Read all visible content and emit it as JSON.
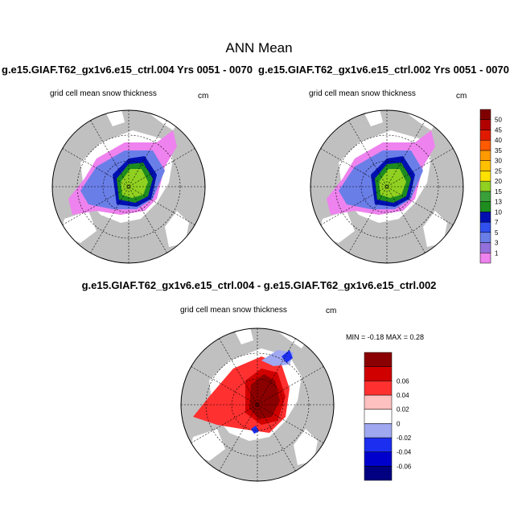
{
  "figure": {
    "title": "ANN Mean",
    "run_a_title": "g.e15.GIAF.T62_gx1v6.e15_ctrl.004  Yrs 0051 - 0070",
    "run_b_title": "g.e15.GIAF.T62_gx1v6.e15_ctrl.002  Yrs 0051 - 0070",
    "difference_title": "g.e15.GIAF.T62_gx1v6.e15_ctrl.004 - g.e15.GIAF.T62_gx1v6.e15_ctrl.002"
  },
  "panels": {
    "a": {
      "label": "grid cell mean snow thickness",
      "units": "cm"
    },
    "b": {
      "label": "grid cell mean snow thickness",
      "units": "cm"
    },
    "c": {
      "label": "grid cell mean snow thickness",
      "units": "cm",
      "min_max_text": "MIN =  -0.18 MAX =   0.28"
    }
  },
  "chart_data": [
    {
      "type": "heatmap",
      "title": "g.e15.GIAF.T62_gx1v6.e15_ctrl.004  Yrs 0051 - 0070",
      "variable": "grid cell mean snow thickness",
      "units": "cm",
      "projection": "north polar stereographic",
      "colorbar": {
        "levels": [
          "1",
          "3",
          "5",
          "7",
          "10",
          "13",
          "15",
          "20",
          "25",
          "30",
          "35",
          "40",
          "45",
          "50"
        ],
        "colors": [
          "#ee82ee",
          "#9370db",
          "#6a7ee8",
          "#3050f0",
          "#0010b0",
          "#1e8c1e",
          "#3aa03a",
          "#90d020",
          "#ffe100",
          "#ffc000",
          "#ff9a00",
          "#ff5a00",
          "#e01a00",
          "#b00000",
          "#800000"
        ]
      },
      "field_colors": {
        "land": "#c0c0c0",
        "ocean": "#ffffff"
      }
    },
    {
      "type": "heatmap",
      "title": "g.e15.GIAF.T62_gx1v6.e15_ctrl.002  Yrs 0051 - 0070",
      "variable": "grid cell mean snow thickness",
      "units": "cm",
      "projection": "north polar stereographic"
    },
    {
      "type": "heatmap",
      "title": "g.e15.GIAF.T62_gx1v6.e15_ctrl.004 - g.e15.GIAF.T62_gx1v6.e15_ctrl.002",
      "variable": "grid cell mean snow thickness",
      "units": "cm",
      "projection": "north polar stereographic",
      "min": -0.18,
      "max": 0.28,
      "colorbar": {
        "levels": [
          "-0.06",
          "-0.04",
          "-0.02",
          "0",
          "0.02",
          "0.04",
          "0.06"
        ],
        "colors": [
          "#000080",
          "#0000cd",
          "#1c2ff0",
          "#a0a8f0",
          "#ffffff",
          "#ffc0c0",
          "#ff3030",
          "#d00000",
          "#8b0000"
        ]
      }
    }
  ]
}
